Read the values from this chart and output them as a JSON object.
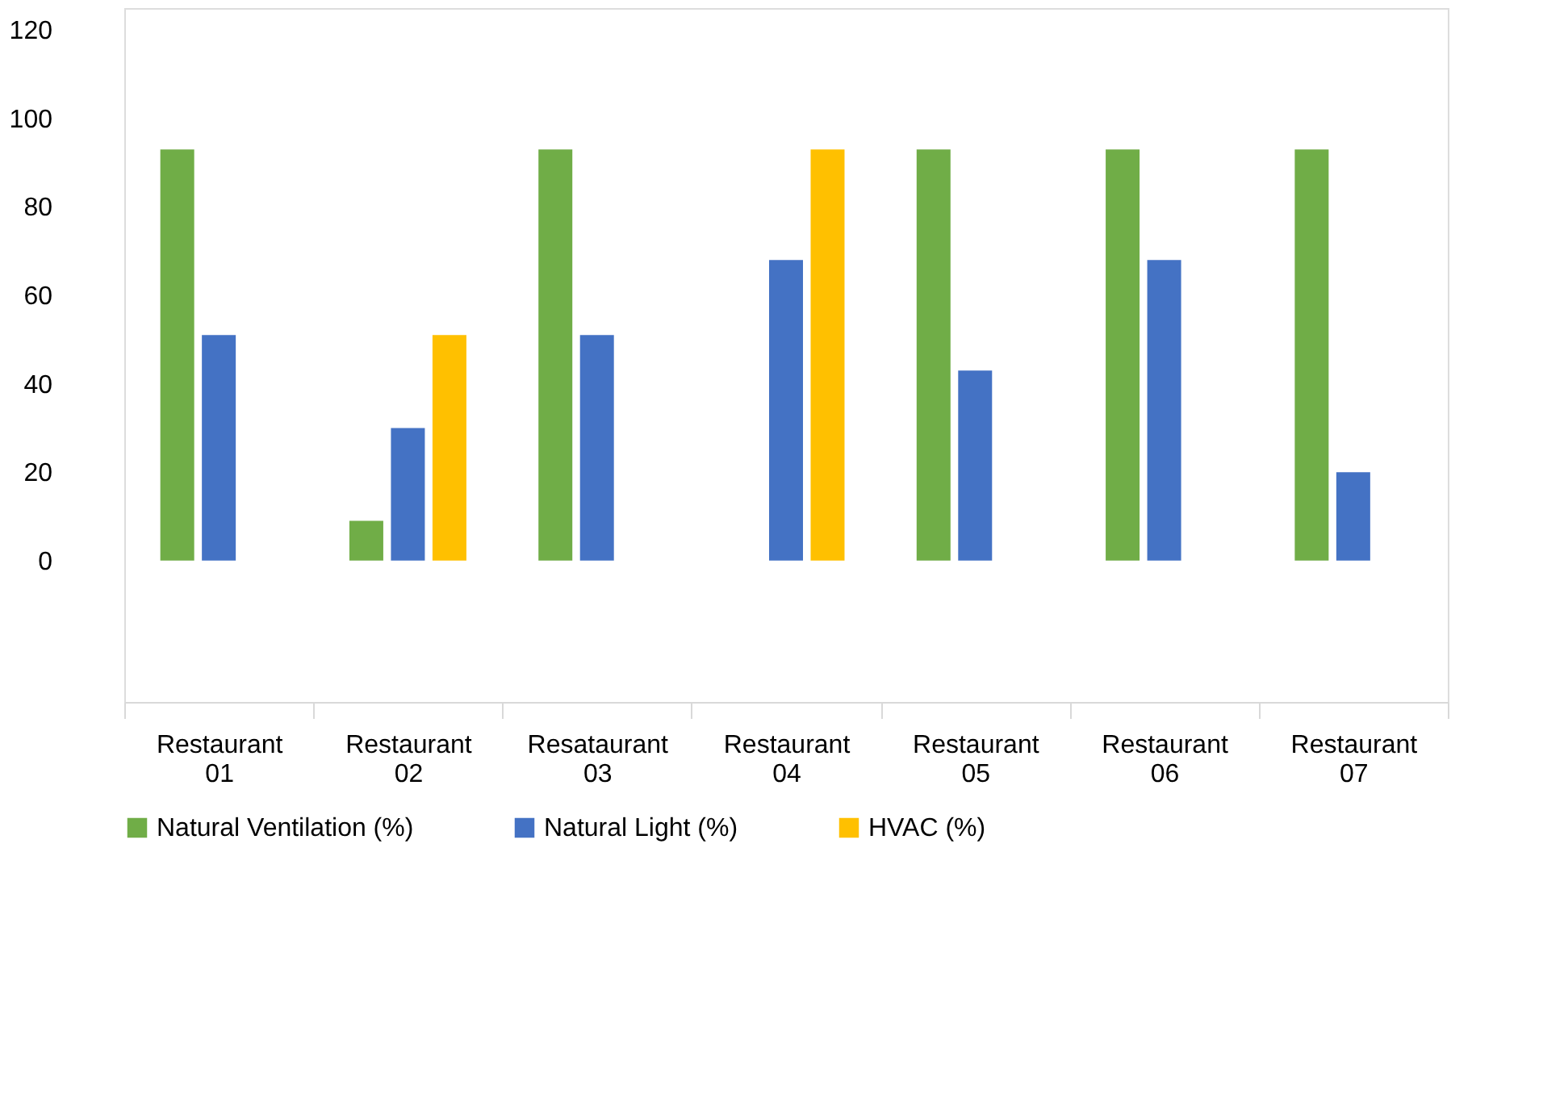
{
  "chart_data": {
    "type": "bar",
    "categories": [
      "Restaurant 01",
      "Restaurant 02",
      "Resataurant 03",
      "Restaurant 04",
      "Restaurant 05",
      "Restaurant 06",
      "Restaurant 07"
    ],
    "series": [
      {
        "name": "Natural Ventilation (%)",
        "color": "#70ad47",
        "values": [
          93,
          9,
          93,
          null,
          93,
          93,
          93
        ]
      },
      {
        "name": "Natural Light (%)",
        "color": "#4472c4",
        "values": [
          51,
          30,
          51,
          68,
          43,
          68,
          20
        ]
      },
      {
        "name": "HVAC (%)",
        "color": "#ffc000",
        "values": [
          null,
          51,
          null,
          93,
          null,
          null,
          null
        ]
      }
    ],
    "ylim": [
      -32,
      125
    ],
    "yticks": [
      0,
      20,
      40,
      60,
      80,
      100,
      120
    ],
    "grid": false,
    "legend": "bottom"
  }
}
